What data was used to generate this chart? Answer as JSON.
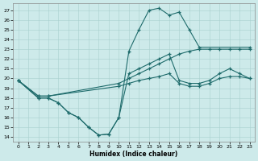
{
  "xlabel": "Humidex (Indice chaleur)",
  "xlim": [
    -0.5,
    23.5
  ],
  "ylim": [
    13.5,
    27.7
  ],
  "yticks": [
    14,
    15,
    16,
    17,
    18,
    19,
    20,
    21,
    22,
    23,
    24,
    25,
    26,
    27
  ],
  "xticks": [
    0,
    1,
    2,
    3,
    4,
    5,
    6,
    7,
    8,
    9,
    10,
    11,
    12,
    13,
    14,
    15,
    16,
    17,
    18,
    19,
    20,
    21,
    22,
    23
  ],
  "bg_color": "#cdeaea",
  "line_color": "#1e6b6b",
  "grid_color": "#a8d0ce",
  "lines": [
    {
      "x": [
        0,
        2,
        3,
        4,
        5,
        6,
        7,
        8,
        9,
        10,
        11,
        12,
        13,
        14,
        15,
        16,
        17,
        18,
        23
      ],
      "y": [
        19.8,
        18.0,
        18.0,
        17.5,
        16.5,
        16.0,
        15.0,
        14.2,
        14.3,
        16.0,
        22.8,
        25.0,
        27.0,
        27.2,
        26.5,
        26.8,
        25.0,
        23.2,
        23.2
      ]
    },
    {
      "x": [
        0,
        2,
        3,
        4,
        5,
        6,
        7,
        8,
        9,
        10,
        11,
        12,
        13,
        14,
        15,
        16,
        17,
        18,
        19,
        20,
        21,
        22,
        23
      ],
      "y": [
        19.8,
        18.0,
        18.0,
        17.5,
        16.5,
        16.0,
        15.0,
        14.2,
        14.3,
        16.0,
        20.5,
        21.0,
        21.5,
        22.0,
        22.5,
        19.8,
        19.5,
        19.5,
        19.8,
        20.5,
        21.0,
        20.5,
        20.0
      ]
    },
    {
      "x": [
        0,
        2,
        3,
        10,
        11,
        12,
        13,
        14,
        15,
        16,
        17,
        18,
        19,
        20,
        21,
        22,
        23
      ],
      "y": [
        19.8,
        18.2,
        18.2,
        19.5,
        20.0,
        20.5,
        21.0,
        21.5,
        22.0,
        22.5,
        22.8,
        23.0,
        23.0,
        23.0,
        23.0,
        23.0,
        23.0
      ]
    },
    {
      "x": [
        0,
        2,
        3,
        10,
        11,
        12,
        13,
        14,
        15,
        16,
        17,
        18,
        19,
        20,
        21,
        22,
        23
      ],
      "y": [
        19.8,
        18.2,
        18.2,
        19.2,
        19.5,
        19.8,
        20.0,
        20.2,
        20.5,
        19.5,
        19.2,
        19.2,
        19.5,
        20.0,
        20.2,
        20.2,
        20.0
      ]
    }
  ]
}
